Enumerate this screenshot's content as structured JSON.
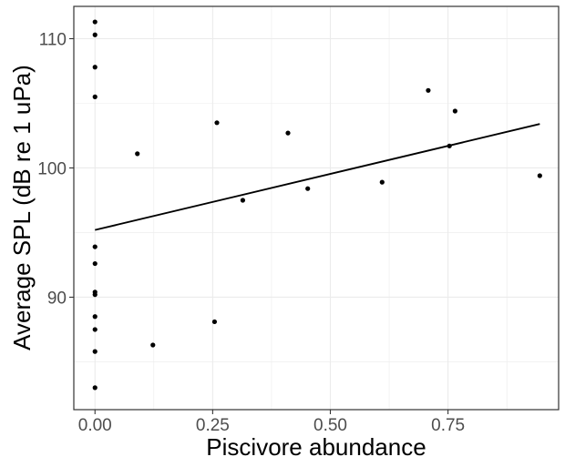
{
  "chart_data": {
    "type": "scatter",
    "xlabel": "Piscivore abundance",
    "ylabel": "Average SPL (dB re 1 uPa)",
    "xlim": [
      -0.045,
      0.985
    ],
    "ylim": [
      81.3,
      112.5
    ],
    "x_ticks": [
      0.0,
      0.25,
      0.5,
      0.75
    ],
    "x_tick_labels": [
      "0.00",
      "0.25",
      "0.50",
      "0.75"
    ],
    "y_ticks": [
      90,
      100,
      110
    ],
    "y_tick_labels": [
      "90",
      "100",
      "110"
    ],
    "grid": true,
    "legend": "none",
    "points": [
      {
        "x": 0.0,
        "y": 111.3
      },
      {
        "x": 0.0,
        "y": 110.3
      },
      {
        "x": 0.0,
        "y": 107.8
      },
      {
        "x": 0.0,
        "y": 105.5
      },
      {
        "x": 0.0,
        "y": 93.9
      },
      {
        "x": 0.0,
        "y": 92.6
      },
      {
        "x": 0.0,
        "y": 90.4
      },
      {
        "x": 0.0,
        "y": 90.2
      },
      {
        "x": 0.0,
        "y": 88.5
      },
      {
        "x": 0.0,
        "y": 87.5
      },
      {
        "x": 0.0,
        "y": 85.8
      },
      {
        "x": 0.0,
        "y": 83.0
      },
      {
        "x": 0.09,
        "y": 101.1
      },
      {
        "x": 0.123,
        "y": 86.3
      },
      {
        "x": 0.254,
        "y": 88.1
      },
      {
        "x": 0.259,
        "y": 103.5
      },
      {
        "x": 0.314,
        "y": 97.5
      },
      {
        "x": 0.41,
        "y": 102.7
      },
      {
        "x": 0.452,
        "y": 98.4
      },
      {
        "x": 0.61,
        "y": 98.9
      },
      {
        "x": 0.708,
        "y": 106.0
      },
      {
        "x": 0.753,
        "y": 101.7
      },
      {
        "x": 0.765,
        "y": 104.4
      },
      {
        "x": 0.945,
        "y": 99.4
      }
    ],
    "trend_line": {
      "x": [
        0.0,
        0.945
      ],
      "y": [
        95.2,
        103.4
      ]
    },
    "colors": {
      "points": "#000000",
      "line": "#000000",
      "grid": "#ebebeb",
      "border": "#333333",
      "tick_text": "#4d4d4d"
    }
  }
}
